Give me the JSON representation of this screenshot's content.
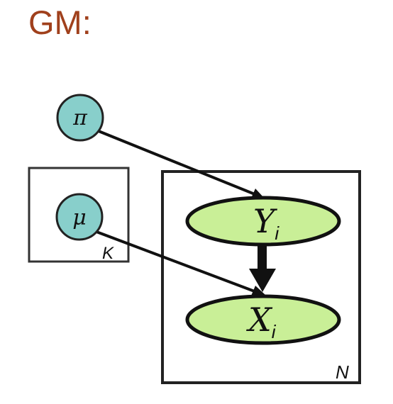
{
  "title": "GM:",
  "colors": {
    "title": "#a0401c",
    "param_node_fill": "#88cfcb",
    "latent_node_fill": "#c9ef97",
    "stroke": "#111111"
  },
  "nodes": {
    "pi": {
      "label": "π"
    },
    "mu": {
      "label": "μ"
    },
    "y": {
      "label": "Y",
      "subscript": "i"
    },
    "x": {
      "label": "X",
      "subscript": "i"
    }
  },
  "plates": {
    "k": {
      "label": "K"
    },
    "n": {
      "label": "N"
    }
  },
  "edges": [
    {
      "from": "pi",
      "to": "y"
    },
    {
      "from": "mu",
      "to": "x"
    },
    {
      "from": "y",
      "to": "x"
    }
  ]
}
